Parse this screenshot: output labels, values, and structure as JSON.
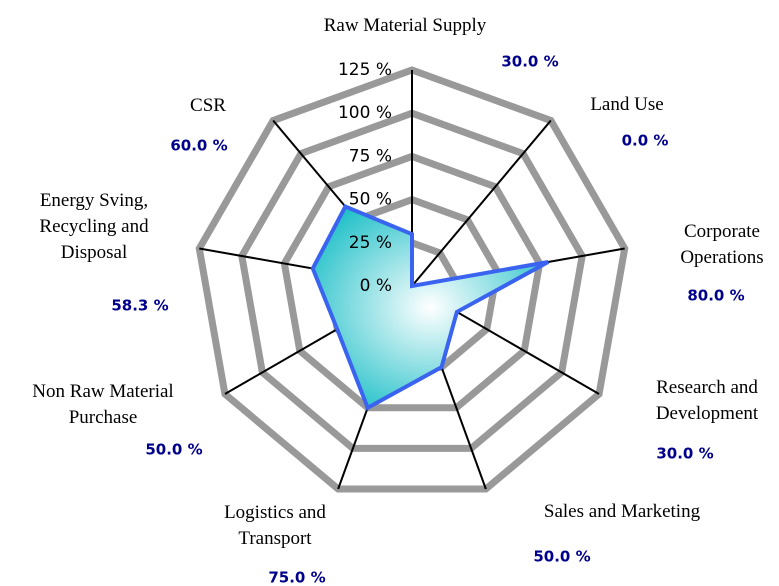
{
  "chart_data": {
    "type": "radar",
    "categories": [
      "Raw Material Supply",
      "Land Use",
      "Corporate\nOperations",
      "Research and\nDevelopment",
      "Sales and Marketing",
      "Logistics and\nTransport",
      "Non Raw Material\nPurchase",
      "Energy Sving,\nRecycling and\nDisposal",
      "CSR"
    ],
    "series": [
      {
        "color": "#3a64f0",
        "values": [
          30,
          0,
          80,
          30,
          50,
          75,
          50,
          58.3,
          60
        ],
        "value_labels": [
          "30.0 %",
          "0.0 %",
          "80.0 %",
          "30.0 %",
          "50.0 %",
          "75.0 %",
          "50.0 %",
          "58.3 %",
          "60.0 %"
        ]
      }
    ],
    "ylim": [
      0,
      125
    ],
    "yticks": [
      {
        "value": 0,
        "label": "0 %"
      },
      {
        "value": 25,
        "label": "25 %"
      },
      {
        "value": 50,
        "label": "50 %"
      },
      {
        "value": 75,
        "label": "75 %"
      },
      {
        "value": 100,
        "label": "100 %"
      },
      {
        "value": 125,
        "label": "125 %"
      }
    ],
    "grid": true
  }
}
